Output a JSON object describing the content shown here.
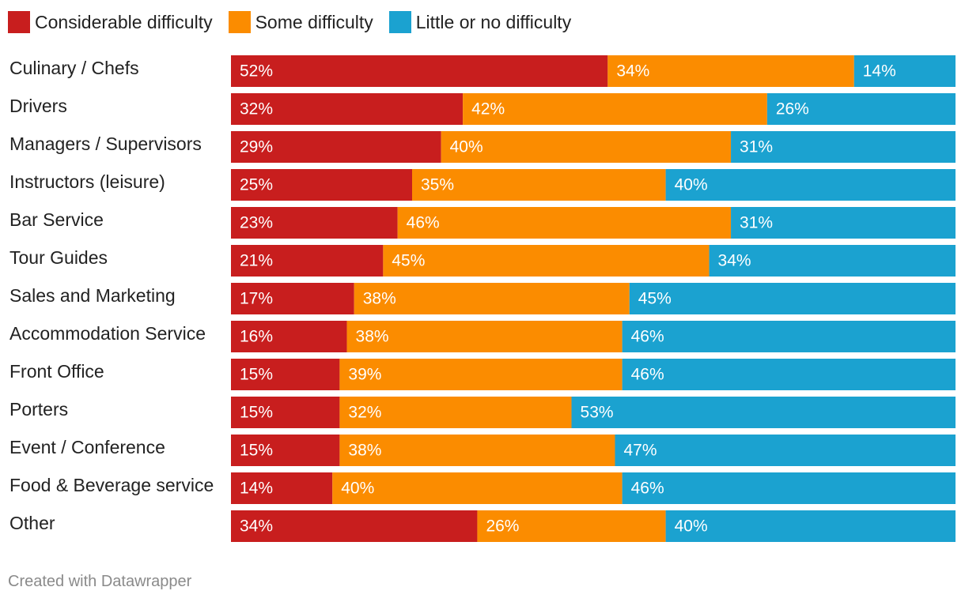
{
  "legend": [
    {
      "label": "Considerable difficulty",
      "color": "#c81e1e"
    },
    {
      "label": "Some difficulty",
      "color": "#fb8c00"
    },
    {
      "label": "Little or no difficulty",
      "color": "#1ba2d0"
    }
  ],
  "chart_data": {
    "type": "bar",
    "orientation": "horizontal",
    "stacked": true,
    "categories": [
      "Culinary / Chefs",
      "Drivers",
      "Managers / Supervisors",
      "Instructors (leisure)",
      "Bar Service",
      "Tour Guides",
      "Sales and Marketing",
      "Accommodation Service",
      "Front Office",
      "Porters",
      "Event / Conference",
      "Food & Beverage service",
      "Other"
    ],
    "series": [
      {
        "name": "Considerable difficulty",
        "color": "#c81e1e",
        "values": [
          52,
          32,
          29,
          25,
          23,
          21,
          17,
          16,
          15,
          15,
          15,
          14,
          34
        ]
      },
      {
        "name": "Some difficulty",
        "color": "#fb8c00",
        "values": [
          34,
          42,
          40,
          35,
          46,
          45,
          38,
          38,
          39,
          32,
          38,
          40,
          26
        ]
      },
      {
        "name": "Little or no difficulty",
        "color": "#1ba2d0",
        "values": [
          14,
          26,
          31,
          40,
          31,
          34,
          45,
          46,
          46,
          53,
          47,
          46,
          40
        ]
      }
    ],
    "value_suffix": "%",
    "xlim": [
      0,
      100
    ]
  },
  "footer": "Created with Datawrapper"
}
